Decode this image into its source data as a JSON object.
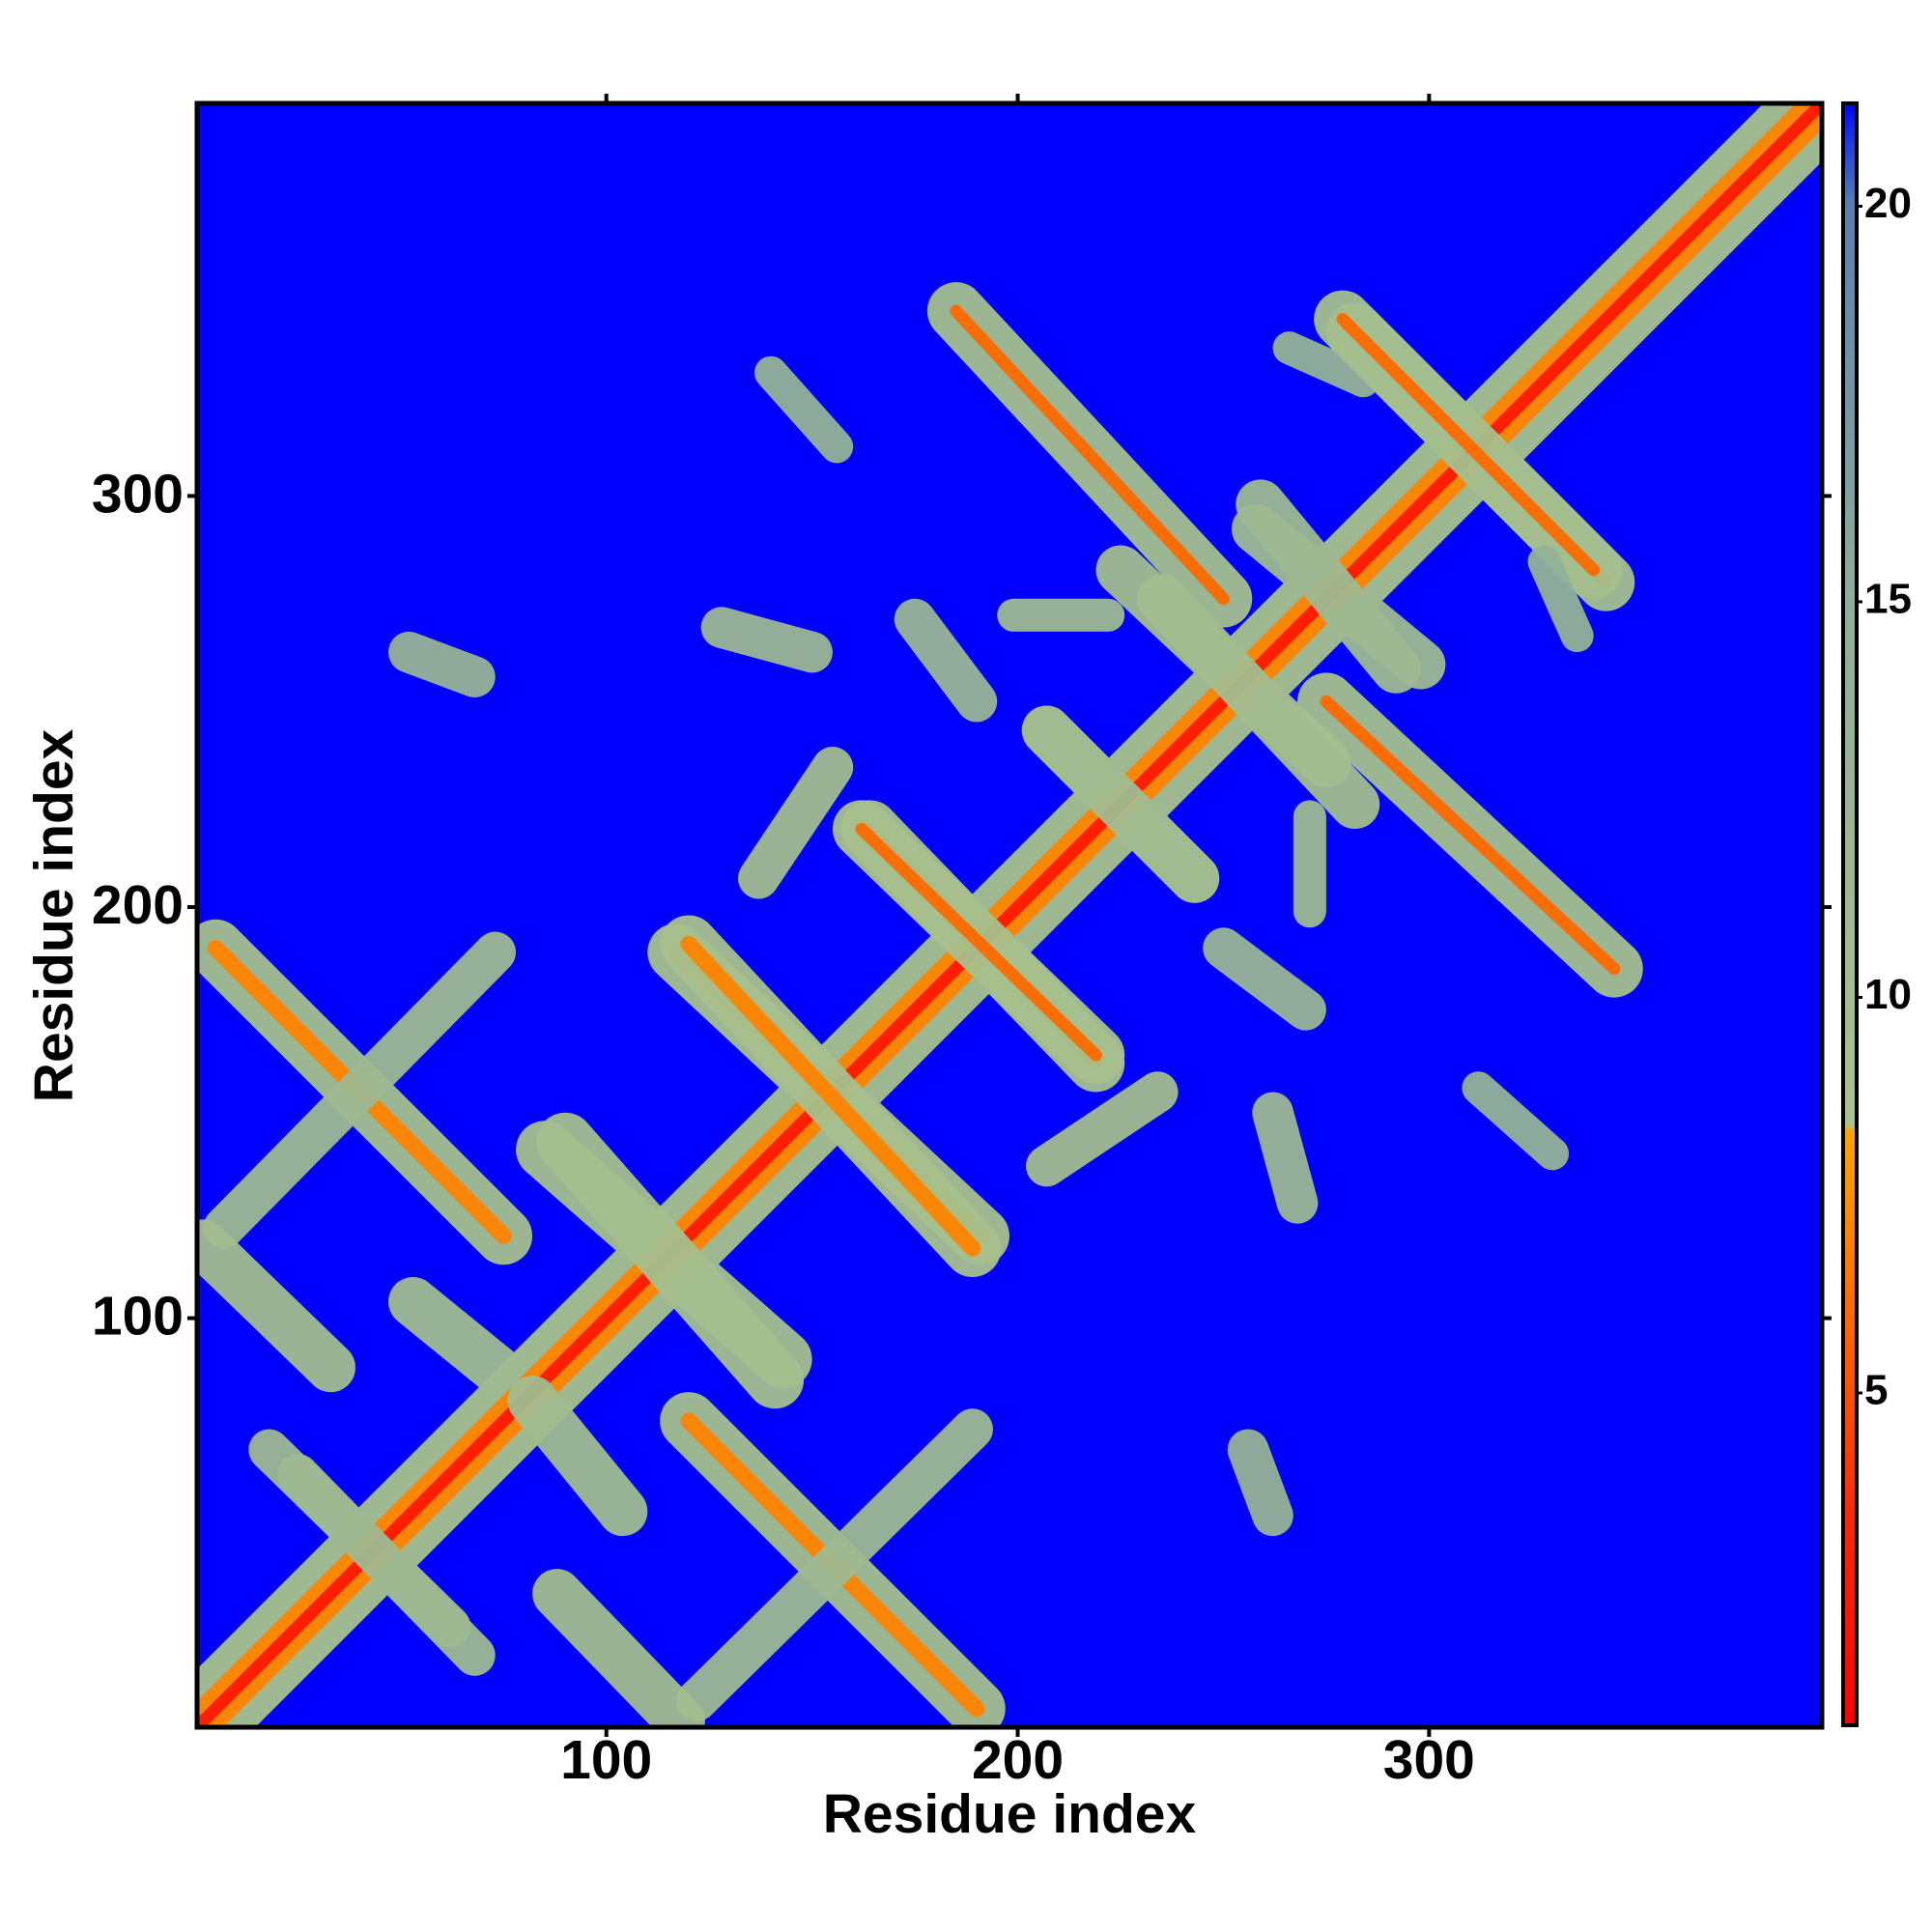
{
  "chart_data": {
    "type": "heatmap",
    "x_label": "Residue index",
    "y_label": "Residue index",
    "xlim": [
      0.5,
      395.5
    ],
    "ylim": [
      0.5,
      395.5
    ],
    "xticks": [
      100,
      200,
      300
    ],
    "yticks": [
      100,
      200,
      300
    ],
    "clim": [
      0.8,
      21.3
    ],
    "cticks": [
      5,
      10,
      15,
      20
    ],
    "colorscale": [
      [
        0.8,
        "#ff0000"
      ],
      [
        3.5,
        "#ff2a00"
      ],
      [
        6,
        "#ff6a00"
      ],
      [
        8.3,
        "#ffa500"
      ],
      [
        8.4,
        "#a9c28c"
      ],
      [
        15,
        "#8fae9a"
      ],
      [
        20,
        "#5a7fb0"
      ],
      [
        20.9,
        "#1a30e8"
      ],
      [
        21.3,
        "#0000ff"
      ]
    ],
    "symmetric": true,
    "segments": [
      {
        "x": [
          0.5,
          395.5
        ],
        "y": [
          0.5,
          395.5
        ],
        "width": 20,
        "value": 11
      },
      {
        "x": [
          0.5,
          395.5
        ],
        "y": [
          0.5,
          395.5
        ],
        "width": 9,
        "value": 7
      },
      {
        "x": [
          0.5,
          395.5
        ],
        "y": [
          0.5,
          395.5
        ],
        "width": 3,
        "value": 2.5
      },
      {
        "x": [
          5,
          75
        ],
        "y": [
          190,
          120
        ],
        "width": 14,
        "value": 9.5
      },
      {
        "x": [
          5,
          75
        ],
        "y": [
          190,
          120
        ],
        "width": 4,
        "value": 7
      },
      {
        "x": [
          7,
          73
        ],
        "y": [
          122,
          189
        ],
        "width": 10,
        "value": 11
      },
      {
        "x": [
          2,
          33
        ],
        "y": [
          118,
          88
        ],
        "width": 12,
        "value": 10
      },
      {
        "x": [
          53,
          80
        ],
        "y": [
          104,
          82
        ],
        "width": 12,
        "value": 10.5
      },
      {
        "x": [
          85,
          143
        ],
        "y": [
          141,
          90
        ],
        "width": 14,
        "value": 9.5
      },
      {
        "x": [
          117,
          191
        ],
        "y": [
          189,
          120
        ],
        "width": 14,
        "value": 9
      },
      {
        "x": [
          117,
          191
        ],
        "y": [
          189,
          120
        ],
        "width": 4,
        "value": 7
      },
      {
        "x": [
          164,
          219
        ],
        "y": [
          219,
          162
        ],
        "width": 14,
        "value": 9
      },
      {
        "x": [
          164,
          219
        ],
        "y": [
          219,
          162
        ],
        "width": 3,
        "value": 6
      },
      {
        "x": [
          137,
          155
        ],
        "y": [
          207,
          234
        ],
        "width": 10,
        "value": 10
      },
      {
        "x": [
          185,
          250
        ],
        "y": [
          345,
          275
        ],
        "width": 14,
        "value": 9.5
      },
      {
        "x": [
          185,
          250
        ],
        "y": [
          345,
          275
        ],
        "width": 3,
        "value": 6
      },
      {
        "x": [
          282,
          343
        ],
        "y": [
          340,
          279
        ],
        "width": 14,
        "value": 9.5
      },
      {
        "x": [
          282,
          343
        ],
        "y": [
          340,
          279
        ],
        "width": 3,
        "value": 6
      },
      {
        "x": [
          128,
          150
        ],
        "y": [
          268,
          262
        ],
        "width": 10,
        "value": 12
      },
      {
        "x": [
          175,
          190
        ],
        "y": [
          270,
          250
        ],
        "width": 10,
        "value": 12.5
      },
      {
        "x": [
          199,
          222
        ],
        "y": [
          271,
          271
        ],
        "width": 8,
        "value": 11
      },
      {
        "x": [
          52,
          68
        ],
        "y": [
          262,
          256
        ],
        "width": 10,
        "value": 13
      },
      {
        "x": [
          140,
          156
        ],
        "y": [
          330,
          312
        ],
        "width": 8,
        "value": 13.5
      },
      {
        "x": [
          266,
          284
        ],
        "y": [
          336,
          328
        ],
        "width": 8,
        "value": 13.5
      },
      {
        "x": [
          258,
          298
        ],
        "y": [
          292,
          259
        ],
        "width": 12,
        "value": 11
      },
      {
        "x": [
          225,
          275
        ],
        "y": [
          282,
          235
        ],
        "width": 12,
        "value": 10
      },
      {
        "x": [
          207,
          243
        ],
        "y": [
          243,
          207
        ],
        "width": 12,
        "value": 10.5
      },
      {
        "x": [
          18,
          62
        ],
        "y": [
          68,
          25
        ],
        "width": 10,
        "value": 11
      }
    ]
  }
}
